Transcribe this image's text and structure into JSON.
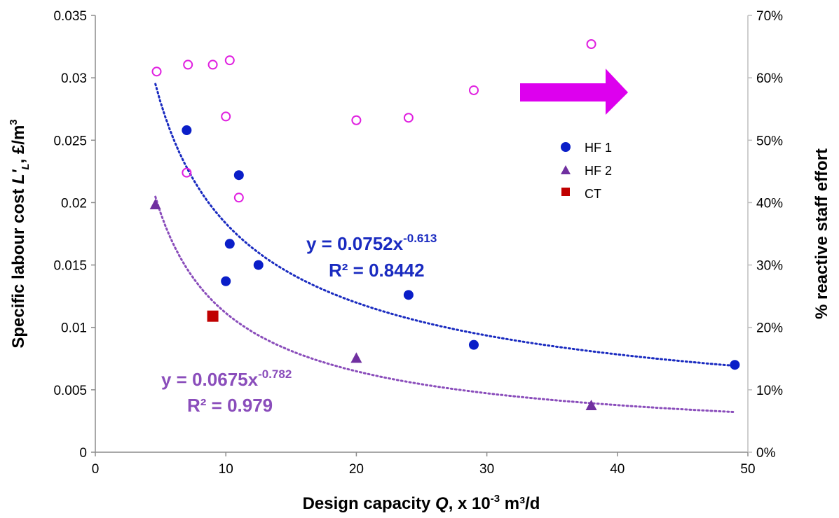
{
  "chart_data": {
    "type": "scatter",
    "x_axis": {
      "label_prefix": "Design capacity ",
      "label_var": "Q",
      "label_mid": ", x 10",
      "label_sup": "-3",
      "label_suffix": " m³/d",
      "range": [
        0,
        50
      ],
      "ticks": [
        "0",
        "10",
        "20",
        "30",
        "40",
        "50"
      ]
    },
    "y_axis_left": {
      "label_prefix": "Specific labour cost ",
      "label_var": "L'",
      "label_sub": "L",
      "label_suffix": ", £/m",
      "label_sup": "3",
      "range": [
        0,
        0.035
      ],
      "ticks": [
        "0",
        "0.005",
        "0.01",
        "0.015",
        "0.02",
        "0.025",
        "0.03",
        "0.035"
      ]
    },
    "y_axis_right": {
      "label": "% reactive staff effort",
      "range": [
        0,
        70
      ],
      "ticks": [
        "0%",
        "10%",
        "20%",
        "30%",
        "40%",
        "50%",
        "60%",
        "70%"
      ]
    },
    "series": [
      {
        "name": "HF 1",
        "marker": "circle",
        "color": "#0a1ec8",
        "axis": "left",
        "points": [
          [
            7,
            0.0258
          ],
          [
            11,
            0.0222
          ],
          [
            10.3,
            0.0167
          ],
          [
            12.5,
            0.015
          ],
          [
            10,
            0.0137
          ],
          [
            24,
            0.0126
          ],
          [
            29,
            0.0086
          ],
          [
            49,
            0.007
          ]
        ]
      },
      {
        "name": "HF 2",
        "marker": "triangle",
        "color": "#7030a0",
        "axis": "left",
        "points": [
          [
            4.6,
            0.0198
          ],
          [
            20,
            0.0075
          ],
          [
            38,
            0.0037
          ]
        ]
      },
      {
        "name": "CT",
        "marker": "square",
        "color": "#c00000",
        "axis": "left",
        "points": [
          [
            9,
            0.0109
          ]
        ]
      },
      {
        "marker": "open-circle",
        "color": "#e020e0",
        "axis": "right",
        "points": [
          [
            4.7,
            61
          ],
          [
            7.1,
            62.1
          ],
          [
            9,
            62.1
          ],
          [
            10.3,
            62.8
          ],
          [
            38,
            65.4
          ],
          [
            10,
            53.8
          ],
          [
            29,
            58
          ],
          [
            20,
            53.2
          ],
          [
            24,
            53.6
          ],
          [
            7,
            44.8
          ],
          [
            11,
            40.8
          ]
        ]
      }
    ],
    "trendlines": [
      {
        "series": "HF 1",
        "a": 0.0752,
        "b": -0.613,
        "x_range": [
          4.6,
          49
        ],
        "color": "#1a2bc0",
        "equation_base": "y = 0.0752x",
        "equation_exp": "-0.613",
        "r2": "R² = 0.8442"
      },
      {
        "series": "HF 2",
        "a": 0.0675,
        "b": -0.782,
        "x_range": [
          4.6,
          49
        ],
        "color": "#8a4dbb",
        "equation_base": "y = 0.0675x",
        "equation_exp": "-0.782",
        "r2": "R² = 0.979"
      }
    ],
    "annotation_arrow": {
      "color": "#dd00ee",
      "direction": "right"
    },
    "legend": {
      "position": "middle-right"
    },
    "grid": false
  }
}
